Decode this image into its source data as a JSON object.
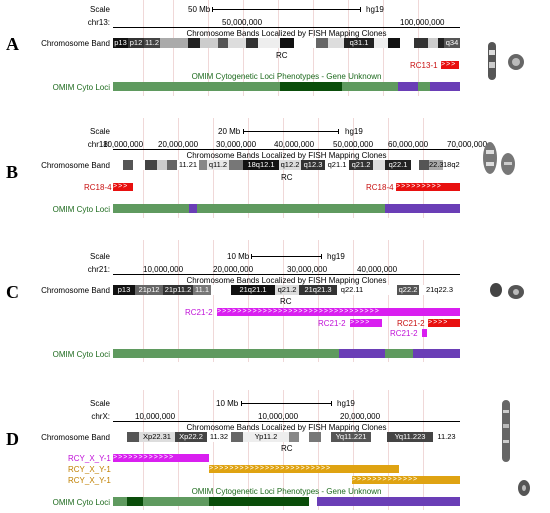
{
  "panels": [
    {
      "letter": "A",
      "scale_label": "Scale",
      "chr_label": "chr13:",
      "scale_bar": "50 Mb",
      "assembly": "hg19",
      "coords": [
        "50,000,000",
        "100,000,000"
      ],
      "band_track_label": "Chromosome Band",
      "track_title": "Chromosome Bands Localized by FISH Mapping Clones",
      "rc_label": "RC",
      "bands": [
        "p13",
        "p12",
        "11.2",
        "q31.1",
        "q34"
      ],
      "clones": [
        "RC13-1"
      ],
      "omim_title": "OMIM Cytogenetic Loci Phenotypes - Gene Unknown",
      "omim_label": "OMIM Cyto Loci"
    },
    {
      "letter": "B",
      "scale_label": "Scale",
      "chr_label": "chr18:",
      "scale_bar": "20 Mb",
      "assembly": "hg19",
      "coords": [
        "10,000,000",
        "20,000,000",
        "30,000,000",
        "40,000,000",
        "50,000,000",
        "60,000,000",
        "70,000,000"
      ],
      "band_track_label": "Chromosome Band",
      "track_title": "Chromosome Bands Localized by FISH Mapping Clones",
      "rc_label": "RC",
      "bands": [
        "11.21",
        "q11.2",
        "18q12.1",
        "q12.2",
        "q12.3",
        "q21.1",
        "q21.2",
        "q22.1",
        "22.3",
        "18q23"
      ],
      "clones": [
        "RC18-4",
        "RC18-4"
      ],
      "omim_label": "OMIM Cyto Loci"
    },
    {
      "letter": "C",
      "scale_label": "Scale",
      "chr_label": "chr21:",
      "scale_bar": "10 Mb",
      "assembly": "hg19",
      "coords": [
        "10,000,000",
        "20,000,000",
        "30,000,000",
        "40,000,000"
      ],
      "band_track_label": "Chromosome Band",
      "track_title": "Chromosome Bands Localized by FISH Mapping Clones",
      "rc_label": "RC",
      "bands": [
        "p13",
        "21p12",
        "21p11.2",
        "11.1",
        "21q21.1",
        "q21.2",
        "21q21.3",
        "q22.11",
        "q22.2",
        "21q22.3"
      ],
      "clones": [
        "RC21-2",
        "RC21-2",
        "RC21-2",
        "RC21-2"
      ],
      "omim_label": "OMIM Cyto Loci"
    },
    {
      "letter": "D",
      "scale_label": "Scale",
      "chr_label": "chrX:",
      "scale_bar": "10 Mb",
      "assembly": "hg19",
      "coords": [
        "10,000,000",
        "10,000,000",
        "20,000,000"
      ],
      "band_track_label": "Chromosome Band",
      "track_title": "Chromosome Bands Localized by FISH Mapping Clones",
      "rc_label": "RC",
      "bands": [
        "Xp22.31",
        "Xp22.2",
        "11.32",
        "Yp11.2",
        "Yq11.221",
        "Yq11.223",
        "11.23"
      ],
      "clones": [
        "RCY_X_Y-1",
        "RCY_X_Y-1",
        "RCY_X_Y-1"
      ],
      "omim_title": "OMIM Cytogenetic Loci Phenotypes - Gene Unknown",
      "omim_label": "OMIM Cyto Loci"
    }
  ],
  "colors": {
    "clone_red": "#e8100f",
    "clone_magenta": "#d91ff0",
    "clone_orange": "#dfa312",
    "omim_green": "#5f9a5f",
    "omim_dark": "#0a4d0a",
    "omim_purple": "#6a3eb6",
    "omim_label": "#1d6a1d",
    "clone_label_red": "#c81010",
    "clone_label_magenta": "#c010d8",
    "clone_label_orange": "#c08000"
  }
}
